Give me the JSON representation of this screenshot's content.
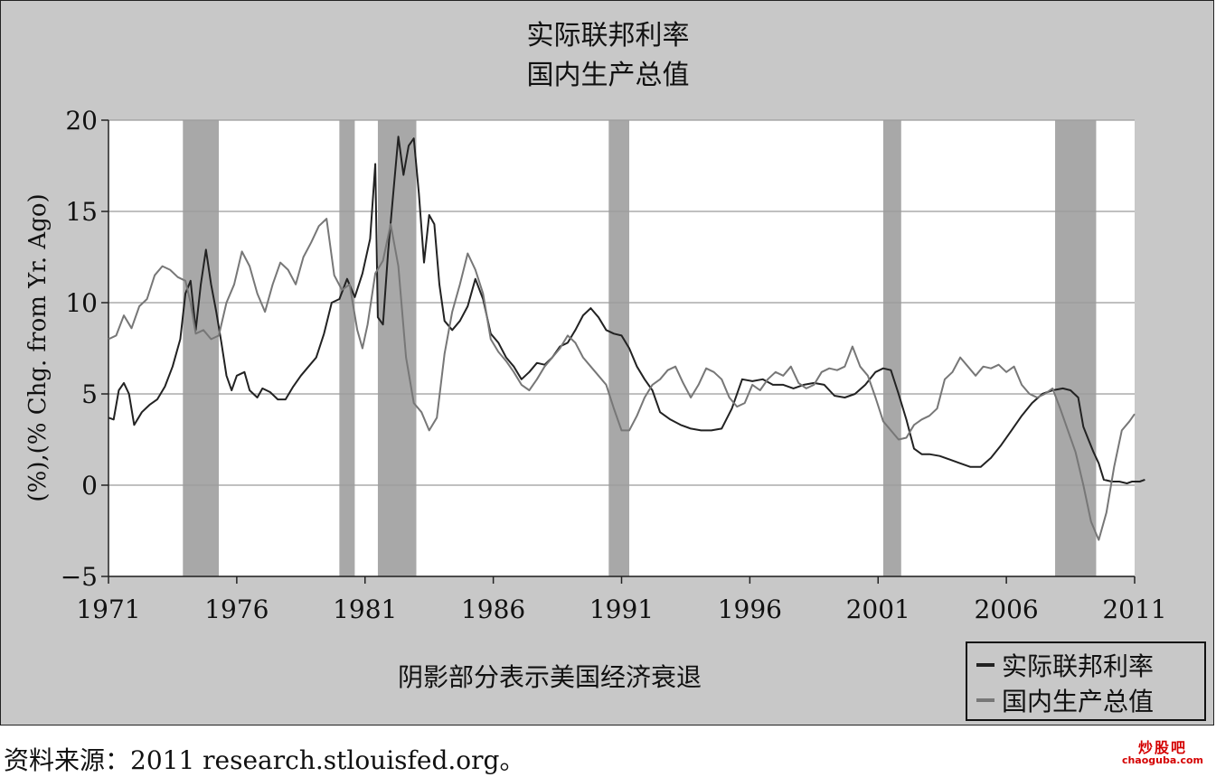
{
  "chart_data": {
    "type": "line",
    "title": "实际联邦利率",
    "subtitle": "国内生产总值",
    "ylabel": "(%),(% Chg. from Yr. Ago)",
    "xlabel": "",
    "xlim": [
      1971,
      2011
    ],
    "ylim": [
      -5,
      20
    ],
    "x_ticks": [
      "1971",
      "1976",
      "1981",
      "1986",
      "1991",
      "1996",
      "2001",
      "2006",
      "2011"
    ],
    "y_ticks": [
      "−5",
      "0",
      "5",
      "10",
      "15",
      "20"
    ],
    "y_tick_values": [
      -5,
      0,
      5,
      10,
      15,
      20
    ],
    "x_tick_values": [
      1971,
      1976,
      1981,
      1986,
      1991,
      1996,
      2001,
      2006,
      2011
    ],
    "grid": "horizontal",
    "annotation": "阴影部分表示美国经济衰退",
    "legend_position": "bottom-right",
    "recessions": [
      [
        1973.9,
        1975.3
      ],
      [
        1980.0,
        1980.6
      ],
      [
        1981.5,
        1983.0
      ],
      [
        1990.5,
        1991.3
      ],
      [
        2001.2,
        2001.9
      ],
      [
        2007.9,
        2009.5
      ]
    ],
    "series": [
      {
        "name": "实际联邦利率",
        "color": "#222222",
        "points": [
          [
            1971.0,
            3.7
          ],
          [
            1971.2,
            3.6
          ],
          [
            1971.4,
            5.2
          ],
          [
            1971.6,
            5.6
          ],
          [
            1971.8,
            5.0
          ],
          [
            1972.0,
            3.3
          ],
          [
            1972.3,
            4.0
          ],
          [
            1972.6,
            4.4
          ],
          [
            1972.9,
            4.7
          ],
          [
            1973.2,
            5.4
          ],
          [
            1973.5,
            6.5
          ],
          [
            1973.8,
            8.0
          ],
          [
            1974.0,
            10.5
          ],
          [
            1974.2,
            11.2
          ],
          [
            1974.4,
            8.5
          ],
          [
            1974.6,
            11.0
          ],
          [
            1974.8,
            12.9
          ],
          [
            1975.0,
            11.0
          ],
          [
            1975.2,
            9.5
          ],
          [
            1975.4,
            7.8
          ],
          [
            1975.6,
            6.0
          ],
          [
            1975.8,
            5.2
          ],
          [
            1976.0,
            6.0
          ],
          [
            1976.3,
            6.2
          ],
          [
            1976.5,
            5.2
          ],
          [
            1976.8,
            4.8
          ],
          [
            1977.0,
            5.3
          ],
          [
            1977.3,
            5.1
          ],
          [
            1977.6,
            4.7
          ],
          [
            1977.9,
            4.7
          ],
          [
            1978.2,
            5.4
          ],
          [
            1978.5,
            6.0
          ],
          [
            1978.8,
            6.5
          ],
          [
            1979.1,
            7.0
          ],
          [
            1979.4,
            8.3
          ],
          [
            1979.7,
            10.0
          ],
          [
            1980.0,
            10.2
          ],
          [
            1980.3,
            11.3
          ],
          [
            1980.6,
            10.3
          ],
          [
            1980.9,
            11.6
          ],
          [
            1981.2,
            13.5
          ],
          [
            1981.4,
            17.6
          ],
          [
            1981.5,
            9.2
          ],
          [
            1981.7,
            8.8
          ],
          [
            1981.9,
            12.8
          ],
          [
            1982.1,
            16.0
          ],
          [
            1982.3,
            19.1
          ],
          [
            1982.5,
            17.0
          ],
          [
            1982.7,
            18.6
          ],
          [
            1982.9,
            19.0
          ],
          [
            1983.1,
            16.0
          ],
          [
            1983.3,
            12.2
          ],
          [
            1983.5,
            14.8
          ],
          [
            1983.7,
            14.3
          ],
          [
            1983.9,
            11.0
          ],
          [
            1984.1,
            9.0
          ],
          [
            1984.4,
            8.5
          ],
          [
            1984.7,
            9.0
          ],
          [
            1985.0,
            9.8
          ],
          [
            1985.3,
            11.3
          ],
          [
            1985.6,
            10.2
          ],
          [
            1985.9,
            8.3
          ],
          [
            1986.2,
            7.8
          ],
          [
            1986.5,
            7.0
          ],
          [
            1986.8,
            6.5
          ],
          [
            1987.1,
            5.8
          ],
          [
            1987.4,
            6.2
          ],
          [
            1987.7,
            6.7
          ],
          [
            1988.0,
            6.6
          ],
          [
            1988.3,
            7.0
          ],
          [
            1988.6,
            7.6
          ],
          [
            1988.9,
            7.8
          ],
          [
            1989.2,
            8.5
          ],
          [
            1989.5,
            9.3
          ],
          [
            1989.8,
            9.7
          ],
          [
            1990.1,
            9.2
          ],
          [
            1990.4,
            8.5
          ],
          [
            1990.7,
            8.3
          ],
          [
            1991.0,
            8.2
          ],
          [
            1991.3,
            7.5
          ],
          [
            1991.6,
            6.5
          ],
          [
            1991.9,
            5.8
          ],
          [
            1992.2,
            5.2
          ],
          [
            1992.5,
            4.0
          ],
          [
            1992.9,
            3.6
          ],
          [
            1993.3,
            3.3
          ],
          [
            1993.7,
            3.1
          ],
          [
            1994.1,
            3.0
          ],
          [
            1994.5,
            3.0
          ],
          [
            1994.9,
            3.1
          ],
          [
            1995.3,
            4.2
          ],
          [
            1995.7,
            5.8
          ],
          [
            1996.1,
            5.7
          ],
          [
            1996.5,
            5.8
          ],
          [
            1996.9,
            5.5
          ],
          [
            1997.3,
            5.5
          ],
          [
            1997.7,
            5.3
          ],
          [
            1998.1,
            5.5
          ],
          [
            1998.5,
            5.6
          ],
          [
            1998.9,
            5.5
          ],
          [
            1999.3,
            4.9
          ],
          [
            1999.7,
            4.8
          ],
          [
            2000.1,
            5.0
          ],
          [
            2000.5,
            5.5
          ],
          [
            2000.9,
            6.2
          ],
          [
            2001.2,
            6.4
          ],
          [
            2001.5,
            6.3
          ],
          [
            2001.8,
            5.0
          ],
          [
            2002.1,
            3.6
          ],
          [
            2002.4,
            2.0
          ],
          [
            2002.7,
            1.7
          ],
          [
            2003.0,
            1.7
          ],
          [
            2003.4,
            1.6
          ],
          [
            2003.8,
            1.4
          ],
          [
            2004.2,
            1.2
          ],
          [
            2004.6,
            1.0
          ],
          [
            2005.0,
            1.0
          ],
          [
            2005.4,
            1.5
          ],
          [
            2005.8,
            2.2
          ],
          [
            2006.2,
            3.0
          ],
          [
            2006.6,
            3.8
          ],
          [
            2007.0,
            4.5
          ],
          [
            2007.4,
            5.0
          ],
          [
            2007.8,
            5.2
          ],
          [
            2008.2,
            5.3
          ],
          [
            2008.5,
            5.2
          ],
          [
            2008.8,
            4.8
          ],
          [
            2009.0,
            3.2
          ],
          [
            2009.2,
            2.5
          ],
          [
            2009.4,
            1.8
          ],
          [
            2009.6,
            1.2
          ],
          [
            2009.8,
            0.3
          ],
          [
            2010.1,
            0.2
          ],
          [
            2010.4,
            0.2
          ],
          [
            2010.7,
            0.1
          ],
          [
            2010.9,
            0.2
          ],
          [
            2011.2,
            0.2
          ],
          [
            2011.4,
            0.3
          ]
        ]
      },
      {
        "name": "国内生产总值",
        "color": "#777777",
        "points": [
          [
            1971.0,
            8.0
          ],
          [
            1971.3,
            8.2
          ],
          [
            1971.6,
            9.3
          ],
          [
            1971.9,
            8.6
          ],
          [
            1972.2,
            9.8
          ],
          [
            1972.5,
            10.2
          ],
          [
            1972.8,
            11.5
          ],
          [
            1973.1,
            12.0
          ],
          [
            1973.4,
            11.8
          ],
          [
            1973.7,
            11.4
          ],
          [
            1974.0,
            11.2
          ],
          [
            1974.2,
            10.0
          ],
          [
            1974.4,
            8.3
          ],
          [
            1974.7,
            8.5
          ],
          [
            1975.0,
            8.0
          ],
          [
            1975.3,
            8.2
          ],
          [
            1975.6,
            10.0
          ],
          [
            1975.9,
            11.0
          ],
          [
            1976.2,
            12.8
          ],
          [
            1976.5,
            12.0
          ],
          [
            1976.8,
            10.5
          ],
          [
            1977.1,
            9.5
          ],
          [
            1977.4,
            11.0
          ],
          [
            1977.7,
            12.2
          ],
          [
            1978.0,
            11.8
          ],
          [
            1978.3,
            11.0
          ],
          [
            1978.6,
            12.5
          ],
          [
            1978.9,
            13.3
          ],
          [
            1979.2,
            14.2
          ],
          [
            1979.5,
            14.6
          ],
          [
            1979.8,
            11.5
          ],
          [
            1980.1,
            10.7
          ],
          [
            1980.4,
            11.0
          ],
          [
            1980.7,
            8.5
          ],
          [
            1980.9,
            7.5
          ],
          [
            1981.1,
            8.8
          ],
          [
            1981.4,
            11.6
          ],
          [
            1981.7,
            12.3
          ],
          [
            1982.0,
            14.3
          ],
          [
            1982.3,
            12.0
          ],
          [
            1982.6,
            7.0
          ],
          [
            1982.9,
            4.5
          ],
          [
            1983.2,
            4.0
          ],
          [
            1983.5,
            3.0
          ],
          [
            1983.8,
            3.7
          ],
          [
            1984.1,
            7.2
          ],
          [
            1984.4,
            9.5
          ],
          [
            1984.7,
            11.0
          ],
          [
            1985.0,
            12.7
          ],
          [
            1985.3,
            11.8
          ],
          [
            1985.6,
            10.5
          ],
          [
            1985.9,
            8.0
          ],
          [
            1986.2,
            7.3
          ],
          [
            1986.5,
            6.8
          ],
          [
            1986.8,
            6.2
          ],
          [
            1987.1,
            5.5
          ],
          [
            1987.4,
            5.2
          ],
          [
            1987.7,
            5.8
          ],
          [
            1988.0,
            6.5
          ],
          [
            1988.3,
            7.0
          ],
          [
            1988.6,
            7.5
          ],
          [
            1988.9,
            8.2
          ],
          [
            1989.2,
            7.8
          ],
          [
            1989.5,
            7.0
          ],
          [
            1989.8,
            6.5
          ],
          [
            1990.1,
            6.0
          ],
          [
            1990.4,
            5.5
          ],
          [
            1990.7,
            4.2
          ],
          [
            1991.0,
            3.0
          ],
          [
            1991.3,
            3.0
          ],
          [
            1991.6,
            3.8
          ],
          [
            1991.9,
            4.8
          ],
          [
            1992.2,
            5.5
          ],
          [
            1992.5,
            5.8
          ],
          [
            1992.8,
            6.3
          ],
          [
            1993.1,
            6.5
          ],
          [
            1993.4,
            5.6
          ],
          [
            1993.7,
            4.8
          ],
          [
            1994.0,
            5.5
          ],
          [
            1994.3,
            6.4
          ],
          [
            1994.6,
            6.2
          ],
          [
            1994.9,
            5.8
          ],
          [
            1995.2,
            4.8
          ],
          [
            1995.5,
            4.3
          ],
          [
            1995.8,
            4.5
          ],
          [
            1996.1,
            5.5
          ],
          [
            1996.4,
            5.2
          ],
          [
            1996.7,
            5.8
          ],
          [
            1997.0,
            6.2
          ],
          [
            1997.3,
            6.0
          ],
          [
            1997.6,
            6.5
          ],
          [
            1997.9,
            5.6
          ],
          [
            1998.2,
            5.3
          ],
          [
            1998.5,
            5.5
          ],
          [
            1998.8,
            6.2
          ],
          [
            1999.1,
            6.4
          ],
          [
            1999.4,
            6.3
          ],
          [
            1999.7,
            6.5
          ],
          [
            2000.0,
            7.6
          ],
          [
            2000.3,
            6.5
          ],
          [
            2000.6,
            6.0
          ],
          [
            2000.9,
            4.8
          ],
          [
            2001.2,
            3.5
          ],
          [
            2001.5,
            3.0
          ],
          [
            2001.8,
            2.5
          ],
          [
            2002.1,
            2.6
          ],
          [
            2002.4,
            3.3
          ],
          [
            2002.7,
            3.6
          ],
          [
            2003.0,
            3.8
          ],
          [
            2003.3,
            4.2
          ],
          [
            2003.6,
            5.8
          ],
          [
            2003.9,
            6.2
          ],
          [
            2004.2,
            7.0
          ],
          [
            2004.5,
            6.5
          ],
          [
            2004.8,
            6.0
          ],
          [
            2005.1,
            6.5
          ],
          [
            2005.4,
            6.4
          ],
          [
            2005.7,
            6.6
          ],
          [
            2006.0,
            6.2
          ],
          [
            2006.3,
            6.5
          ],
          [
            2006.6,
            5.5
          ],
          [
            2006.9,
            5.0
          ],
          [
            2007.2,
            4.8
          ],
          [
            2007.5,
            5.0
          ],
          [
            2007.8,
            5.3
          ],
          [
            2008.1,
            4.2
          ],
          [
            2008.4,
            3.0
          ],
          [
            2008.7,
            1.8
          ],
          [
            2009.0,
            0.0
          ],
          [
            2009.3,
            -2.0
          ],
          [
            2009.6,
            -3.0
          ],
          [
            2009.9,
            -1.5
          ],
          [
            2010.2,
            1.0
          ],
          [
            2010.5,
            3.0
          ],
          [
            2010.8,
            3.5
          ],
          [
            2011.0,
            3.9
          ]
        ]
      }
    ]
  },
  "legend": {
    "items": [
      {
        "label": "实际联邦利率",
        "color": "#222222"
      },
      {
        "label": "国内生产总值",
        "color": "#777777"
      }
    ]
  },
  "source_text": "资料来源：2011 research.stlouisfed.org。",
  "watermark": {
    "line1": "炒股吧",
    "line2": "chaoguba.com"
  }
}
